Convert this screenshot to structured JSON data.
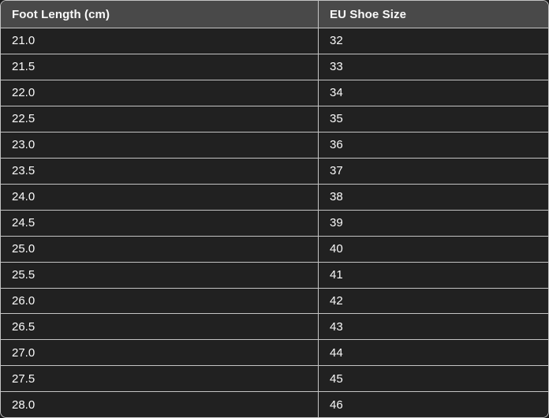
{
  "chart_data": {
    "type": "table",
    "columns": [
      "Foot Length (cm)",
      "EU Shoe Size"
    ],
    "rows": [
      [
        "21.0",
        "32"
      ],
      [
        "21.5",
        "33"
      ],
      [
        "22.0",
        "34"
      ],
      [
        "22.5",
        "35"
      ],
      [
        "23.0",
        "36"
      ],
      [
        "23.5",
        "37"
      ],
      [
        "24.0",
        "38"
      ],
      [
        "24.5",
        "39"
      ],
      [
        "25.0",
        "40"
      ],
      [
        "25.5",
        "41"
      ],
      [
        "26.0",
        "42"
      ],
      [
        "26.5",
        "43"
      ],
      [
        "27.0",
        "44"
      ],
      [
        "27.5",
        "45"
      ],
      [
        "28.0",
        "46"
      ]
    ]
  },
  "colors": {
    "page_bg": "#1b1b1b",
    "header_bg": "#494949",
    "row_bg": "#212121",
    "border": "#c4c4c4",
    "text": "#fafafa"
  }
}
